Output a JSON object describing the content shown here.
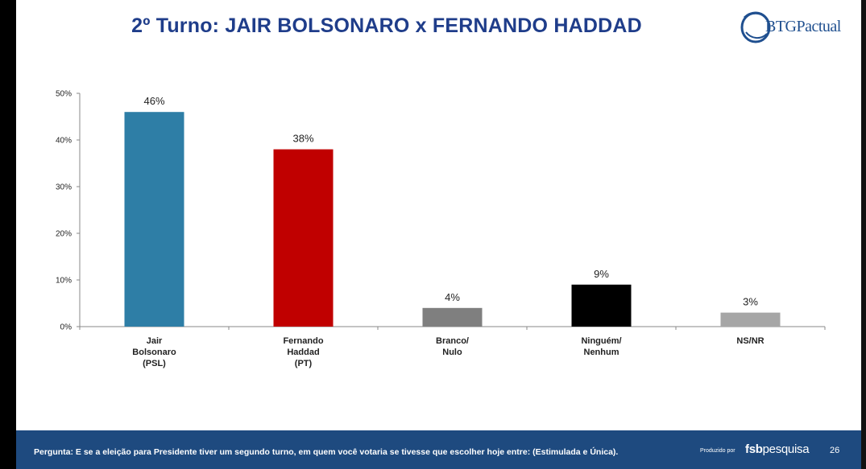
{
  "title": "2º Turno: JAIR BOLSONARO x FERNANDO HADDAD",
  "logo": {
    "text": "BTGPactual",
    "icon": "btg-swirl-icon",
    "color": "#1f4f8f"
  },
  "chart_data": {
    "type": "bar",
    "categories": [
      [
        "Jair",
        "Bolsonaro",
        "(PSL)"
      ],
      [
        "Fernando",
        "Haddad",
        "(PT)"
      ],
      [
        "Branco/",
        "Nulo"
      ],
      [
        "Ninguém/",
        "Nenhum"
      ],
      [
        "NS/NR"
      ]
    ],
    "values": [
      46,
      38,
      4,
      9,
      3
    ],
    "value_labels": [
      "46%",
      "38%",
      "4%",
      "9%",
      "3%"
    ],
    "colors": [
      "#2e7ea6",
      "#c00000",
      "#7f7f7f",
      "#000000",
      "#a6a6a6"
    ],
    "yticks": [
      "0%",
      "10%",
      "20%",
      "30%",
      "40%",
      "50%"
    ],
    "ylim": [
      0,
      50
    ],
    "xlabel": "",
    "ylabel": "",
    "grid": false
  },
  "footer": {
    "question": "Pergunta:  E se a eleição para Presidente tiver um segundo turno, em quem você votaria se tivesse que escolher hoje entre:  (Estimulada e Única).",
    "produced_by": "Produzido por",
    "producer_bold": "fsb",
    "producer_rest": "pesquisa",
    "page_number": "26",
    "background": "#1e4a7f"
  }
}
